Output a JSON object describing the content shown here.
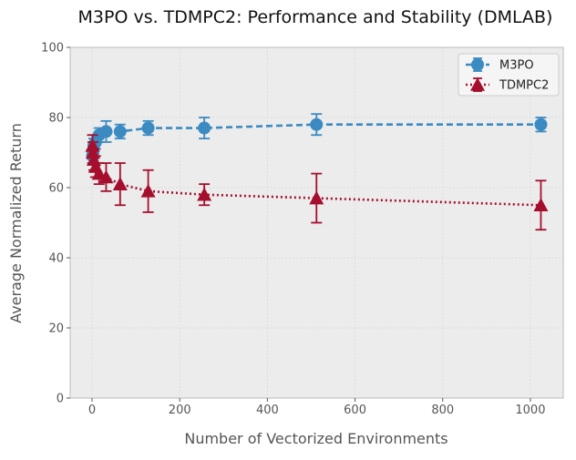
{
  "chart_data": {
    "type": "line",
    "title": "M3PO vs. TDMPC2: Performance and Stability (DMLAB)",
    "xlabel": "Number of Vectorized Environments",
    "ylabel": "Average Normalized Return",
    "xlim": [
      -50,
      1075
    ],
    "ylim": [
      0,
      100
    ],
    "xticks": [
      0,
      200,
      400,
      600,
      800,
      1000
    ],
    "yticks": [
      0,
      20,
      40,
      60,
      80,
      100
    ],
    "grid": true,
    "legend_position": "top-right",
    "series": [
      {
        "name": "M3PO",
        "marker": "circle",
        "line_style": "dashed",
        "color": "#3b8bc2",
        "x": [
          1,
          2,
          4,
          8,
          16,
          32,
          64,
          128,
          256,
          512,
          1024
        ],
        "y": [
          69,
          70,
          72,
          73,
          75,
          76,
          76,
          77,
          77,
          78,
          78
        ],
        "err": [
          2,
          2,
          2,
          2,
          2,
          3,
          2,
          2,
          3,
          3,
          2
        ]
      },
      {
        "name": "TDMPC2",
        "marker": "triangle",
        "line_style": "dotted",
        "color": "#a50f2d",
        "x": [
          1,
          2,
          4,
          8,
          16,
          32,
          64,
          128,
          256,
          512,
          1024
        ],
        "y": [
          72,
          70,
          68,
          66,
          64,
          63,
          61,
          59,
          58,
          57,
          55
        ],
        "err": [
          3,
          3,
          3,
          3,
          3,
          4,
          6,
          6,
          3,
          7,
          7
        ]
      }
    ]
  }
}
